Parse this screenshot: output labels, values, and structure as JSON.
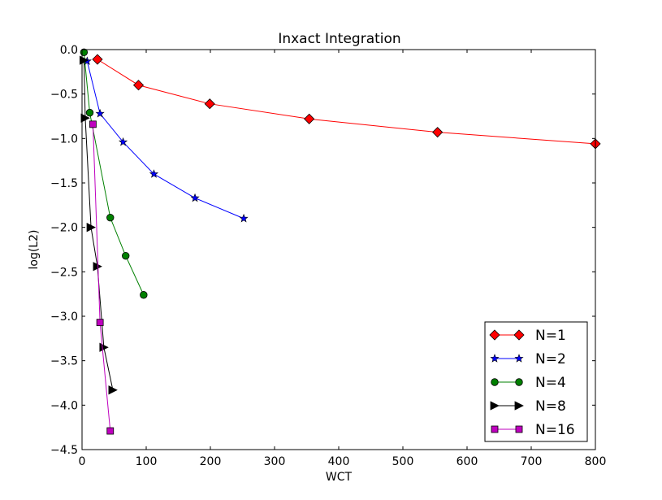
{
  "chart_data": {
    "type": "line",
    "title": "Inxact Integration",
    "xlabel": "WCT",
    "ylabel": "log(L2)",
    "xlim": [
      0,
      800
    ],
    "ylim": [
      -4.5,
      0.0
    ],
    "xticks": [
      0,
      100,
      200,
      300,
      400,
      500,
      600,
      700,
      800
    ],
    "yticks": [
      0.0,
      -0.5,
      -1.0,
      -1.5,
      -2.0,
      -2.5,
      -3.0,
      -3.5,
      -4.0,
      -4.5
    ],
    "xtick_labels": [
      "0",
      "100",
      "200",
      "300",
      "400",
      "500",
      "600",
      "700",
      "800"
    ],
    "ytick_labels": [
      "0.0",
      "−0.5",
      "−1.0",
      "−1.5",
      "−2.0",
      "−2.5",
      "−3.0",
      "−3.5",
      "−4.0",
      "−4.5"
    ],
    "grid": false,
    "legend_position": "lower-right",
    "series": [
      {
        "name": "N=1",
        "color": "#ff0000",
        "marker": "diamond",
        "points": [
          [
            24,
            -0.11
          ],
          [
            88,
            -0.4
          ],
          [
            199,
            -0.61
          ],
          [
            354,
            -0.78
          ],
          [
            554,
            -0.93
          ],
          [
            800,
            -1.06
          ]
        ]
      },
      {
        "name": "N=2",
        "color": "#0000ff",
        "marker": "star",
        "points": [
          [
            8,
            -0.13
          ],
          [
            28,
            -0.72
          ],
          [
            64,
            -1.04
          ],
          [
            112,
            -1.4
          ],
          [
            176,
            -1.67
          ],
          [
            252,
            -1.9
          ]
        ]
      },
      {
        "name": "N=4",
        "color": "#008000",
        "marker": "circle",
        "points": [
          [
            3,
            -0.03
          ],
          [
            12,
            -0.71
          ],
          [
            44,
            -1.89
          ],
          [
            68,
            -2.32
          ],
          [
            96,
            -2.76
          ]
        ]
      },
      {
        "name": "N=8",
        "color": "#000000",
        "marker": "triangle-right",
        "points": [
          [
            3,
            -0.12
          ],
          [
            5,
            -0.77
          ],
          [
            14,
            -2.0
          ],
          [
            24,
            -2.44
          ],
          [
            34,
            -3.35
          ],
          [
            48,
            -3.83
          ]
        ]
      },
      {
        "name": "N=16",
        "color": "#bf00bf",
        "marker": "square",
        "points": [
          [
            17,
            -0.84
          ],
          [
            28,
            -3.07
          ],
          [
            44,
            -4.29
          ]
        ]
      }
    ]
  }
}
